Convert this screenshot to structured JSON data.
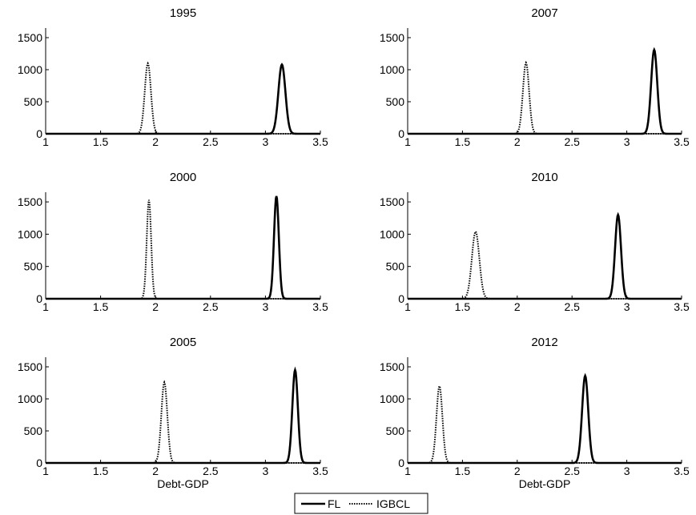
{
  "x_ticks": [
    "1",
    "1.5",
    "2",
    "2.5",
    "3",
    "3.5"
  ],
  "y_ticks": [
    "0",
    "500",
    "1000",
    "1500"
  ],
  "xlabel": "Debt-GDP",
  "legend": {
    "FL": "FL",
    "IGBCL": "IGBCL"
  },
  "chart_data": [
    {
      "type": "line",
      "title": "1995",
      "xlabel": "",
      "xlim": [
        1,
        3.5
      ],
      "ylim": [
        0,
        1650
      ],
      "series": [
        {
          "name": "FL",
          "style": "solid",
          "peak_x": 3.15,
          "peak_y": 1080,
          "sd": 0.032
        },
        {
          "name": "IGBCL",
          "style": "dotted",
          "peak_x": 1.93,
          "peak_y": 1100,
          "sd": 0.028
        }
      ]
    },
    {
      "type": "line",
      "title": "2007",
      "xlabel": "",
      "xlim": [
        1,
        3.5
      ],
      "ylim": [
        0,
        1650
      ],
      "series": [
        {
          "name": "FL",
          "style": "solid",
          "peak_x": 3.25,
          "peak_y": 1310,
          "sd": 0.028
        },
        {
          "name": "IGBCL",
          "style": "dotted",
          "peak_x": 2.08,
          "peak_y": 1110,
          "sd": 0.028
        }
      ]
    },
    {
      "type": "line",
      "title": "2000",
      "xlabel": "",
      "xlim": [
        1,
        3.5
      ],
      "ylim": [
        0,
        1650
      ],
      "series": [
        {
          "name": "FL",
          "style": "solid",
          "peak_x": 3.1,
          "peak_y": 1590,
          "sd": 0.022
        },
        {
          "name": "IGBCL",
          "style": "dotted",
          "peak_x": 1.94,
          "peak_y": 1530,
          "sd": 0.02
        }
      ]
    },
    {
      "type": "line",
      "title": "2010",
      "xlabel": "",
      "xlim": [
        1,
        3.5
      ],
      "ylim": [
        0,
        1650
      ],
      "series": [
        {
          "name": "FL",
          "style": "solid",
          "peak_x": 2.92,
          "peak_y": 1300,
          "sd": 0.027
        },
        {
          "name": "IGBCL",
          "style": "dotted",
          "peak_x": 1.62,
          "peak_y": 1040,
          "sd": 0.034
        }
      ]
    },
    {
      "type": "line",
      "title": "2005",
      "xlabel": "Debt-GDP",
      "xlim": [
        1,
        3.5
      ],
      "ylim": [
        0,
        1650
      ],
      "series": [
        {
          "name": "FL",
          "style": "solid",
          "peak_x": 3.27,
          "peak_y": 1450,
          "sd": 0.025
        },
        {
          "name": "IGBCL",
          "style": "dotted",
          "peak_x": 2.08,
          "peak_y": 1260,
          "sd": 0.027
        }
      ]
    },
    {
      "type": "line",
      "title": "2012",
      "xlabel": "Debt-GDP",
      "xlim": [
        1,
        3.5
      ],
      "ylim": [
        0,
        1650
      ],
      "series": [
        {
          "name": "FL",
          "style": "solid",
          "peak_x": 2.62,
          "peak_y": 1360,
          "sd": 0.028
        },
        {
          "name": "IGBCL",
          "style": "dotted",
          "peak_x": 1.29,
          "peak_y": 1200,
          "sd": 0.027
        }
      ]
    }
  ]
}
